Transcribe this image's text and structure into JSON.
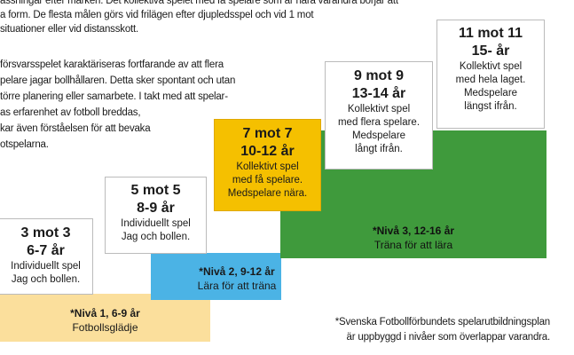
{
  "intro": [
    "assningar efter marken. Det kollektiva spelet med få spelare som är nära varandra börjar att",
    "a form. De flesta målen görs vid frilägen efter djupledsspel och vid 1 mot",
    "situationer eller vid distansskott."
  ],
  "paragraph": [
    "försvarsspelet karaktäriseras fortfarande av att flera",
    "pelare jagar bollhållaren. Detta sker spontant och utan",
    "törre planering eller samarbete. I takt med att spelar-",
    "as erfarenhet av fotboll breddas,",
    "kar även förståelsen för att bevaka",
    "otspelarna."
  ],
  "stages": [
    {
      "title": "3 mot 3",
      "age": "6-7 år",
      "lines": [
        "Individuellt spel",
        "Jag och bollen."
      ]
    },
    {
      "title": "5 mot 5",
      "age": "8-9 år",
      "lines": [
        "Individuellt spel",
        "Jag och bollen."
      ]
    },
    {
      "title": "7 mot 7",
      "age": "10-12 år",
      "lines": [
        "Kollektivt spel",
        "med få spelare.",
        "Medspelare nära."
      ]
    },
    {
      "title": "9 mot 9",
      "age": "13-14 år",
      "lines": [
        "Kollektivt spel",
        "med flera spelare.",
        "Medspelare",
        "långt ifrån."
      ]
    },
    {
      "title": "11 mot 11",
      "age": "15- år",
      "lines": [
        "Kollektivt spel",
        "med hela laget.",
        "Medspelare",
        "längst ifrån."
      ]
    }
  ],
  "levels": [
    {
      "title": "*Nivå 1, 6-9 år",
      "subtitle": "Fotbollsglädje"
    },
    {
      "title": "*Nivå 2, 9-12 år",
      "subtitle": "Lära för att träna"
    },
    {
      "title": "*Nivå 3, 12-16 år",
      "subtitle": "Träna för att lära"
    }
  ],
  "footnote": [
    "*Svenska Fotbollförbundets spelarutbildningsplan",
    "är uppbyggd i nivåer som överlappar varandra."
  ]
}
